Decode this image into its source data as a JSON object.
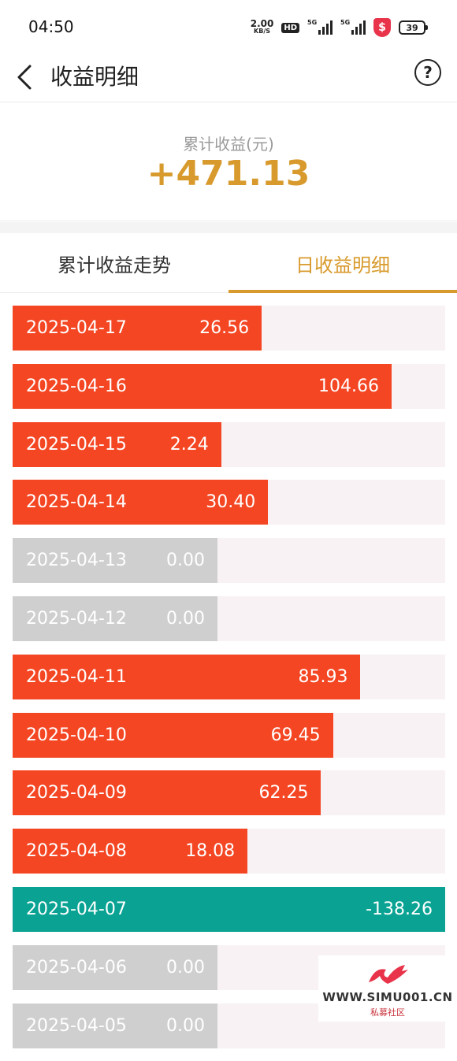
{
  "status_bar": {
    "time": "04:50",
    "net_speed_value": "2.00",
    "net_speed_unit": "KB/S",
    "hd_badge": "HD",
    "signal1_label": "5G",
    "signal2_label": "5G",
    "shield_symbol": "$",
    "battery_level": "39"
  },
  "header": {
    "title": "收益明细",
    "help_symbol": "?"
  },
  "summary": {
    "label": "累计收益(元)",
    "value": "+471.13"
  },
  "tabs": [
    {
      "label": "累计收益走势",
      "active": false
    },
    {
      "label": "日收益明细",
      "active": true
    }
  ],
  "colors": {
    "positive": "#f44623",
    "negative": "#0aa393",
    "zero": "#cfcfcf",
    "track": "#f8f2f4",
    "accent": "#d89a2c"
  },
  "daily": [
    {
      "date": "2025-04-17",
      "value": "26.56"
    },
    {
      "date": "2025-04-16",
      "value": "104.66"
    },
    {
      "date": "2025-04-15",
      "value": "2.24"
    },
    {
      "date": "2025-04-14",
      "value": "30.40"
    },
    {
      "date": "2025-04-13",
      "value": "0.00"
    },
    {
      "date": "2025-04-12",
      "value": "0.00"
    },
    {
      "date": "2025-04-11",
      "value": "85.93"
    },
    {
      "date": "2025-04-10",
      "value": "69.45"
    },
    {
      "date": "2025-04-09",
      "value": "62.25"
    },
    {
      "date": "2025-04-08",
      "value": "18.08"
    },
    {
      "date": "2025-04-07",
      "value": "-138.26"
    },
    {
      "date": "2025-04-06",
      "value": "0.00"
    },
    {
      "date": "2025-04-05",
      "value": "0.00"
    }
  ],
  "watermark": {
    "site": "WWW.SIMU001.CN",
    "sub": "私募社区"
  }
}
